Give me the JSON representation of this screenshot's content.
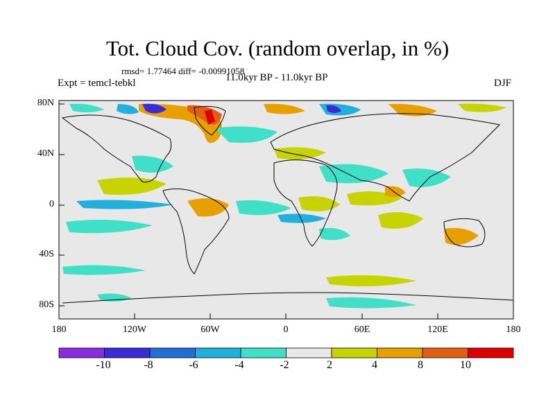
{
  "figure": {
    "title": "Tot. Cloud Cov. (random overlap, in %)",
    "stats": "rmsd= 1.77464 diff= -0.00991058",
    "experiment": "Expt = temcl-tebkl",
    "period": "11.0kyr BP - 11.0kyr BP",
    "season": "DJF"
  },
  "axes": {
    "lat_labels": [
      "80N",
      "40N",
      "0",
      "40S",
      "80S"
    ],
    "lon_labels": [
      "180",
      "120W",
      "60W",
      "0",
      "60E",
      "120E",
      "180"
    ]
  },
  "colorbar": {
    "labels": [
      "-10",
      "-8",
      "-6",
      "-4",
      "-2",
      "2",
      "4",
      "8",
      "10"
    ],
    "colors": [
      "#8a2be2",
      "#3a2bd9",
      "#1f6fd6",
      "#1fb0dd",
      "#3fe0c8",
      "#e8e8e8",
      "#c8d400",
      "#e8a000",
      "#e06010",
      "#e00000"
    ]
  },
  "chart_data": {
    "type": "heatmap",
    "title": "Tot. Cloud Cov. (random overlap, in %)",
    "units": "%",
    "projection": "cylindrical equidistant",
    "lon_range": [
      -180,
      180
    ],
    "lat_range": [
      -90,
      90
    ],
    "contour_levels": [
      -10,
      -8,
      -6,
      -4,
      -2,
      2,
      4,
      8,
      10
    ],
    "colors": {
      "below_-10": "#8a2be2",
      "-10_-8": "#3a2bd9",
      "-8_-6": "#1f6fd6",
      "-6_-4": "#1fb0dd",
      "-4_-2": "#3fe0c8",
      "-2_2": "#e8e8e8",
      "2_4": "#c8d400",
      "4_8": "#e8a000",
      "8_10": "#e06010",
      "above_10": "#e00000"
    }
  }
}
